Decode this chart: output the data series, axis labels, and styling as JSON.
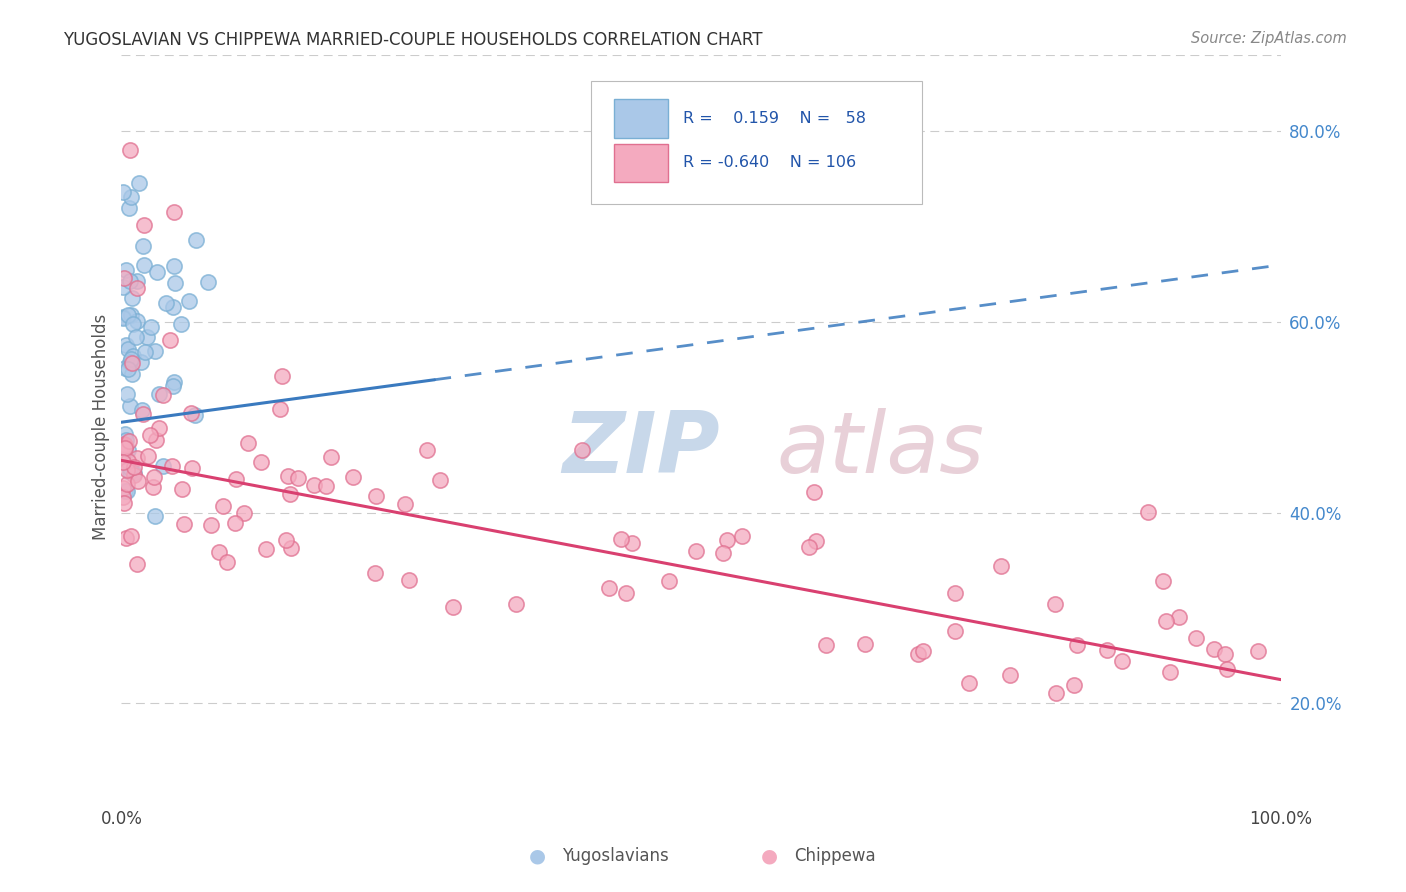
{
  "title": "YUGOSLAVIAN VS CHIPPEWA MARRIED-COUPLE HOUSEHOLDS CORRELATION CHART",
  "source": "Source: ZipAtlas.com",
  "ylabel": "Married-couple Households",
  "yug_R": 0.159,
  "yug_N": 58,
  "chip_R": -0.64,
  "chip_N": 106,
  "yugoslavian_fill": "#aac8e8",
  "yugoslavian_edge": "#7aafd4",
  "chippewa_fill": "#f4aabf",
  "chippewa_edge": "#e07090",
  "yug_line_color": "#3a7abf",
  "chip_line_color": "#d94070",
  "legend_box_color": "#aac8e8",
  "legend_box_color2": "#f4aabf",
  "watermark_color": "#dde8f5",
  "watermark_color2": "#f0d8e0",
  "grid_color": "#cccccc",
  "right_tick_color": "#4488cc",
  "title_color": "#333333",
  "source_color": "#888888"
}
